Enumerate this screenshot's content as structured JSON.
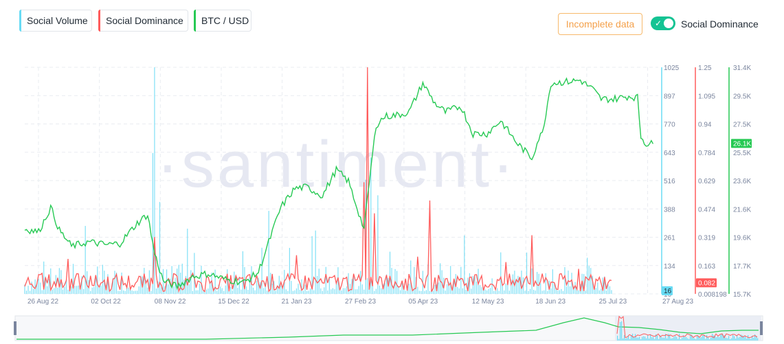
{
  "legend": {
    "items": [
      {
        "label": "Social Volume",
        "color": "#68dbf4"
      },
      {
        "label": "Social Dominance",
        "color": "#ff5b5b"
      },
      {
        "label": "BTC / USD",
        "color": "#26c953"
      }
    ]
  },
  "controls": {
    "incomplete_label": "Incomplete data",
    "toggle_label": "Social Dominance",
    "toggle_on": true,
    "toggle_color": "#14c393"
  },
  "watermark": "·santiment·",
  "chart_data": {
    "type": "line",
    "x_labels": [
      "26 Aug 22",
      "02 Oct 22",
      "08 Nov 22",
      "15 Dec 22",
      "21 Jan 23",
      "27 Feb 23",
      "05 Apr 23",
      "12 May 23",
      "18 Jun 23",
      "25 Jul 23",
      "27 Aug 23"
    ],
    "grid": true,
    "axes": {
      "social_volume": {
        "color": "#68dbf4",
        "ticks": [
          "1025",
          "897",
          "770",
          "643",
          "516",
          "388",
          "261",
          "134",
          "16"
        ],
        "ylim": [
          7,
          1025
        ],
        "last_value": "16"
      },
      "social_dominance": {
        "color": "#ff5b5b",
        "ticks": [
          "1.25",
          "1.095",
          "0.94",
          "0.784",
          "0.629",
          "0.474",
          "0.319",
          "0.163",
          "0.008198"
        ],
        "ylim": [
          0.008198,
          1.25
        ],
        "last_value": "0.082"
      },
      "btc_usd": {
        "color": "#26c953",
        "ticks": [
          "31.4K",
          "29.5K",
          "27.5K",
          "25.5K",
          "23.6K",
          "21.6K",
          "19.6K",
          "17.7K",
          "15.7K"
        ],
        "ylim": [
          15700,
          31400
        ],
        "last_value": "26.1K"
      }
    },
    "series": [
      {
        "name": "BTC / USD",
        "axis": "btc_usd",
        "x": [
          "2022-08-26",
          "2022-09-03",
          "2022-09-10",
          "2022-09-15",
          "2022-09-22",
          "2022-10-02",
          "2022-10-12",
          "2022-10-20",
          "2022-10-30",
          "2022-11-05",
          "2022-11-09",
          "2022-11-14",
          "2022-11-22",
          "2022-12-01",
          "2022-12-10",
          "2022-12-20",
          "2022-12-31",
          "2023-01-08",
          "2023-01-14",
          "2023-01-21",
          "2023-01-29",
          "2023-02-05",
          "2023-02-14",
          "2023-02-22",
          "2023-03-01",
          "2023-03-10",
          "2023-03-14",
          "2023-03-17",
          "2023-03-22",
          "2023-03-30",
          "2023-04-05",
          "2023-04-13",
          "2023-04-20",
          "2023-04-26",
          "2023-05-05",
          "2023-05-12",
          "2023-05-20",
          "2023-05-28",
          "2023-06-06",
          "2023-06-15",
          "2023-06-19",
          "2023-06-21",
          "2023-06-26",
          "2023-07-05",
          "2023-07-13",
          "2023-07-20",
          "2023-07-25",
          "2023-08-01",
          "2023-08-10",
          "2023-08-15",
          "2023-08-17",
          "2023-08-20",
          "2023-08-24"
        ],
        "values": [
          20200,
          20000,
          21700,
          20100,
          19000,
          19300,
          19100,
          19200,
          20600,
          21200,
          18500,
          16600,
          16200,
          16900,
          17100,
          16700,
          16500,
          17200,
          19300,
          21700,
          23000,
          23100,
          22500,
          24300,
          23500,
          20200,
          24400,
          27400,
          28000,
          28100,
          28300,
          30300,
          28900,
          28300,
          28700,
          26800,
          26800,
          27700,
          26200,
          25100,
          26500,
          26800,
          30300,
          30400,
          30500,
          29900,
          29200,
          29200,
          29400,
          29300,
          26600,
          26100,
          26100
        ]
      },
      {
        "name": "Social Volume",
        "axis": "social_volume",
        "x_range": [
          "2022-08-26",
          "2023-07-31"
        ],
        "spikes": [
          {
            "x": "2022-11-09",
            "value": 1025
          },
          {
            "x": "2022-11-08",
            "value": 640
          },
          {
            "x": "2022-11-12",
            "value": 420
          },
          {
            "x": "2023-03-14",
            "value": 620
          },
          {
            "x": "2023-03-11",
            "value": 520
          },
          {
            "x": "2023-03-18",
            "value": 450
          },
          {
            "x": "2023-01-14",
            "value": 380
          },
          {
            "x": "2022-11-28",
            "value": 300
          }
        ],
        "typical_range": [
          20,
          140
        ]
      },
      {
        "name": "Social Dominance",
        "axis": "social_dominance",
        "x_range": [
          "2022-08-26",
          "2023-07-31"
        ],
        "spikes": [
          {
            "x": "2023-03-12",
            "value": 1.25
          },
          {
            "x": "2023-03-10",
            "value": 0.62
          },
          {
            "x": "2023-03-16",
            "value": 0.45
          },
          {
            "x": "2023-04-17",
            "value": 0.52
          },
          {
            "x": "2023-06-15",
            "value": 0.33
          },
          {
            "x": "2022-11-09",
            "value": 0.32
          },
          {
            "x": "2022-09-20",
            "value": 0.2
          },
          {
            "x": "2023-01-30",
            "value": 0.22
          }
        ],
        "typical_range": [
          0.02,
          0.12
        ],
        "last_value": 0.082
      }
    ]
  }
}
